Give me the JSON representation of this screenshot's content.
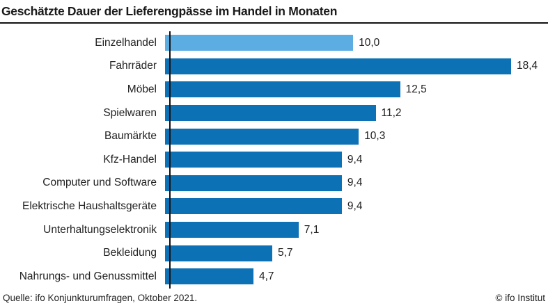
{
  "header": {
    "title": "Geschätzte Dauer der Lieferengpässe im Handel in Monaten"
  },
  "chart_data": {
    "type": "bar",
    "orientation": "horizontal",
    "title": "Geschätzte Dauer der Lieferengpässe im Handel in Monaten",
    "xlabel": "",
    "ylabel": "",
    "xlim": [
      0,
      18.4
    ],
    "grid": false,
    "legend": false,
    "categories": [
      "Einzelhandel",
      "Fahrräder",
      "Möbel",
      "Spielwaren",
      "Baumärkte",
      "Kfz-Handel",
      "Computer und Software",
      "Elektrische Haushaltsgeräte",
      "Unterhaltungselektronik",
      "Bekleidung",
      "Nahrungs- und Genussmittel"
    ],
    "values": [
      10.0,
      18.4,
      12.5,
      11.2,
      10.3,
      9.4,
      9.4,
      9.4,
      7.1,
      5.7,
      4.7
    ],
    "value_labels": [
      "10,0",
      "18,4",
      "12,5",
      "11,2",
      "10,3",
      "9,4",
      "9,4",
      "9,4",
      "7,1",
      "5,7",
      "4,7"
    ],
    "highlight_index": 0,
    "colors": {
      "default": "#0d72b5",
      "highlight": "#5bade2",
      "axis": "#111111",
      "text": "#222222"
    }
  },
  "footer": {
    "source": "Quelle: ifo Konjunkturumfragen, Oktober 2021.",
    "copyright": "© ifo Institut"
  }
}
